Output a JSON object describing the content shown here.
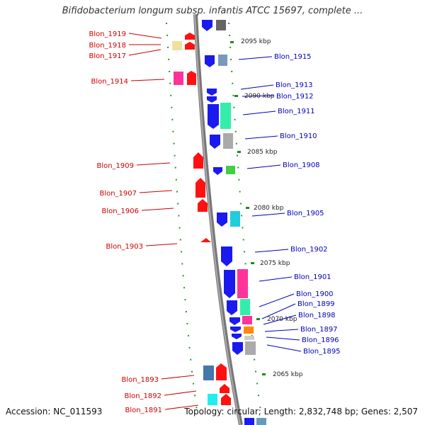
{
  "title": "Bifidobacterium longum subsp. infantis ATCC 15697, complete ...",
  "footer": {
    "accession": "Accession: NC_011593",
    "summary": "Topology: circular; Length: 2,832,748 bp; Genes: 2,507"
  },
  "colors": {
    "left_label": "#cc0000",
    "right_label": "#0000bb",
    "tick": "#228822",
    "backbone": "#888888"
  },
  "tick_labels": [
    "2095 kbp",
    "2090 kbp",
    "2085 kbp",
    "2080 kbp",
    "2075 kbp",
    "2070 kbp",
    "2065 kbp"
  ],
  "left_genes": [
    "Blon_1919",
    "Blon_1918",
    "Blon_1917",
    "Blon_1914",
    "Blon_1909",
    "Blon_1907",
    "Blon_1906",
    "Blon_1903",
    "Blon_1893",
    "Blon_1892",
    "Blon_1891"
  ],
  "right_genes": [
    "Blon_1915",
    "Blon_1913",
    "Blon_1912",
    "Blon_1911",
    "Blon_1910",
    "Blon_1908",
    "Blon_1905",
    "Blon_1902",
    "Blon_1901",
    "Blon_1900",
    "Blon_1899",
    "Blon_1898",
    "Blon_1897",
    "Blon_1896",
    "Blon_1895"
  ]
}
